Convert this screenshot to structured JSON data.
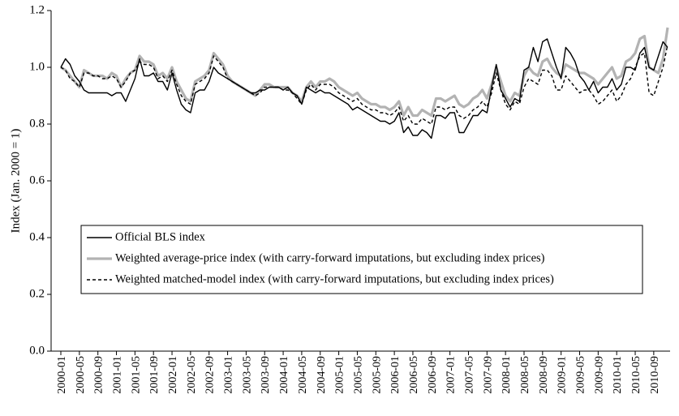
{
  "chart_data": {
    "type": "line",
    "ylabel": "Index (Jan. 2000 = 1)",
    "categories": [
      "2000-01",
      null,
      null,
      null,
      "2000-05",
      null,
      null,
      null,
      "2000-09",
      null,
      null,
      null,
      "2001-01",
      null,
      null,
      null,
      "2001-05",
      null,
      null,
      null,
      "2001-09",
      null,
      null,
      null,
      "2002-01",
      null,
      null,
      null,
      "2002-05",
      null,
      null,
      null,
      "2002-09",
      null,
      null,
      null,
      "2003-01",
      null,
      null,
      null,
      "2003-05",
      null,
      null,
      null,
      "2003-09",
      null,
      null,
      null,
      "2004-01",
      null,
      null,
      null,
      "2004-05",
      null,
      null,
      null,
      "2004-09",
      null,
      null,
      null,
      "2005-01",
      null,
      null,
      null,
      "2005-05",
      null,
      null,
      null,
      "2005-09",
      null,
      null,
      null,
      "2006-01",
      null,
      null,
      null,
      "2006-05",
      null,
      null,
      null,
      "2006-09",
      null,
      null,
      null,
      "2007-01",
      null,
      null,
      null,
      "2007-05",
      null,
      null,
      null,
      "2007-09",
      null,
      null,
      null,
      "2008-01",
      null,
      null,
      null,
      "2008-05",
      null,
      null,
      null,
      "2008-09",
      null,
      null,
      null,
      "2009-01",
      null,
      null,
      null,
      "2009-05",
      null,
      null,
      null,
      "2009-09",
      null,
      null,
      null,
      "2010-01",
      null,
      null,
      null,
      "2010-05",
      null,
      null,
      null,
      "2010-09",
      null,
      null,
      null
    ],
    "series": [
      {
        "name": "Official BLS index",
        "color": "#000000",
        "linestyle": "solid",
        "linewidth": 1.4,
        "values": [
          1.0,
          1.03,
          1.01,
          0.97,
          0.95,
          0.92,
          0.91,
          0.91,
          0.91,
          0.91,
          0.91,
          0.9,
          0.91,
          0.91,
          0.88,
          0.92,
          0.96,
          1.03,
          0.97,
          0.97,
          0.98,
          0.95,
          0.95,
          0.92,
          0.98,
          0.92,
          0.87,
          0.85,
          0.84,
          0.91,
          0.92,
          0.92,
          0.95,
          1.0,
          0.98,
          0.97,
          0.96,
          0.95,
          0.94,
          0.93,
          0.92,
          0.91,
          0.91,
          0.92,
          0.92,
          0.93,
          0.93,
          0.93,
          0.92,
          0.93,
          0.91,
          0.9,
          0.87,
          0.93,
          0.92,
          0.91,
          0.92,
          0.91,
          0.91,
          0.9,
          0.89,
          0.88,
          0.87,
          0.85,
          0.86,
          0.85,
          0.84,
          0.83,
          0.82,
          0.81,
          0.81,
          0.8,
          0.81,
          0.84,
          0.77,
          0.79,
          0.76,
          0.76,
          0.78,
          0.77,
          0.75,
          0.83,
          0.83,
          0.82,
          0.84,
          0.84,
          0.77,
          0.77,
          0.8,
          0.83,
          0.83,
          0.85,
          0.84,
          0.93,
          1.01,
          0.92,
          0.89,
          0.86,
          0.89,
          0.88,
          0.99,
          1.0,
          1.07,
          1.02,
          1.09,
          1.1,
          1.05,
          1.0,
          0.96,
          1.07,
          1.05,
          1.02,
          0.97,
          0.95,
          0.92,
          0.95,
          0.91,
          0.93,
          0.93,
          0.96,
          0.92,
          0.94,
          1.0,
          1.0,
          0.99,
          1.05,
          1.07,
          1.0,
          0.99,
          1.04,
          1.09,
          1.07
        ]
      },
      {
        "name": "Weighted average-price index (with carry-forward imputations, but excluding index prices)",
        "color": "#b3b3b3",
        "linestyle": "solid",
        "linewidth": 3.2,
        "values": [
          1.0,
          0.99,
          0.97,
          0.95,
          0.93,
          0.99,
          0.98,
          0.97,
          0.97,
          0.97,
          0.96,
          0.98,
          0.97,
          0.93,
          0.96,
          0.98,
          0.99,
          1.04,
          1.02,
          1.02,
          1.01,
          0.97,
          0.98,
          0.96,
          1.0,
          0.95,
          0.92,
          0.89,
          0.88,
          0.95,
          0.96,
          0.97,
          0.99,
          1.05,
          1.03,
          1.01,
          0.97,
          0.95,
          0.94,
          0.93,
          0.92,
          0.91,
          0.9,
          0.92,
          0.94,
          0.94,
          0.93,
          0.93,
          0.93,
          0.93,
          0.91,
          0.9,
          0.88,
          0.93,
          0.95,
          0.93,
          0.95,
          0.95,
          0.96,
          0.95,
          0.93,
          0.92,
          0.91,
          0.9,
          0.91,
          0.89,
          0.88,
          0.87,
          0.87,
          0.86,
          0.86,
          0.85,
          0.86,
          0.88,
          0.83,
          0.86,
          0.83,
          0.83,
          0.85,
          0.84,
          0.83,
          0.89,
          0.89,
          0.88,
          0.89,
          0.9,
          0.87,
          0.86,
          0.87,
          0.89,
          0.9,
          0.92,
          0.89,
          0.94,
          1.0,
          0.95,
          0.9,
          0.88,
          0.91,
          0.9,
          0.97,
          1.0,
          0.98,
          0.97,
          1.02,
          1.03,
          1.0,
          0.98,
          0.97,
          1.01,
          1.0,
          0.99,
          0.98,
          0.98,
          0.97,
          0.96,
          0.94,
          0.96,
          0.98,
          1.0,
          0.96,
          0.97,
          1.02,
          1.03,
          1.05,
          1.1,
          1.11,
          1.0,
          0.99,
          0.98,
          1.03,
          1.14
        ]
      },
      {
        "name": "Weighted matched-model index (with carry-forward imputations, but excluding index prices)",
        "color": "#000000",
        "linestyle": "dashed",
        "linewidth": 1.4,
        "values": [
          1.0,
          0.99,
          0.96,
          0.95,
          0.93,
          0.98,
          0.98,
          0.97,
          0.97,
          0.96,
          0.96,
          0.97,
          0.96,
          0.93,
          0.95,
          0.98,
          0.99,
          1.02,
          1.01,
          1.01,
          1.0,
          0.96,
          0.97,
          0.95,
          0.99,
          0.94,
          0.9,
          0.88,
          0.87,
          0.94,
          0.95,
          0.96,
          0.98,
          1.04,
          1.02,
          1.0,
          0.96,
          0.95,
          0.94,
          0.93,
          0.92,
          0.91,
          0.9,
          0.91,
          0.93,
          0.93,
          0.93,
          0.93,
          0.92,
          0.92,
          0.91,
          0.89,
          0.87,
          0.92,
          0.94,
          0.92,
          0.94,
          0.94,
          0.94,
          0.93,
          0.91,
          0.9,
          0.89,
          0.88,
          0.89,
          0.87,
          0.86,
          0.85,
          0.85,
          0.84,
          0.84,
          0.83,
          0.84,
          0.86,
          0.81,
          0.83,
          0.8,
          0.8,
          0.82,
          0.81,
          0.8,
          0.86,
          0.86,
          0.85,
          0.86,
          0.86,
          0.83,
          0.82,
          0.83,
          0.85,
          0.86,
          0.88,
          0.86,
          0.91,
          0.98,
          0.92,
          0.87,
          0.85,
          0.88,
          0.87,
          0.93,
          0.96,
          0.95,
          0.94,
          0.99,
          0.99,
          0.97,
          0.92,
          0.92,
          0.97,
          0.95,
          0.93,
          0.91,
          0.92,
          0.92,
          0.9,
          0.87,
          0.88,
          0.9,
          0.92,
          0.88,
          0.9,
          0.94,
          0.96,
          1.0,
          1.04,
          1.05,
          0.91,
          0.9,
          0.95,
          1.0,
          1.08
        ]
      }
    ],
    "ylim": [
      0,
      1.2
    ],
    "yticks": [
      {
        "value": 0,
        "label": "0.0"
      },
      0.2,
      0.4,
      0.6,
      0.8,
      {
        "value": 1,
        "label": "1.0"
      },
      1.2
    ],
    "grid": false,
    "legend": "lower left"
  }
}
